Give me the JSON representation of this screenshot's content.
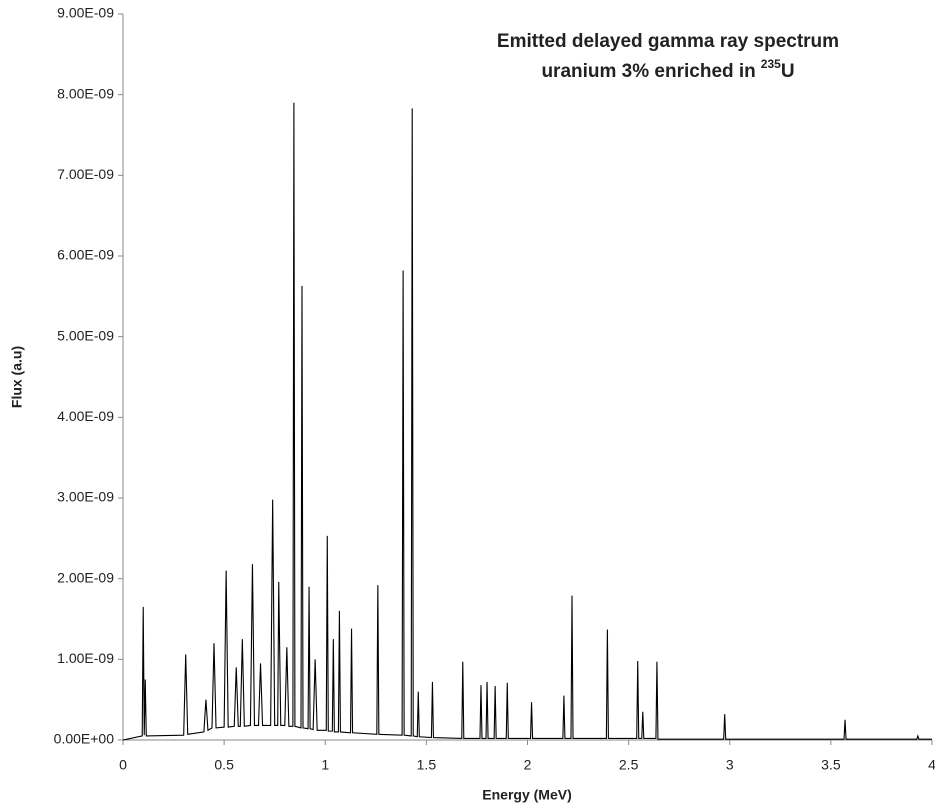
{
  "chart_data": {
    "type": "line",
    "title": "Emitted delayed gamma ray spectrum",
    "title_line2": "uranium 3% enriched in",
    "title_superscript": "235",
    "title_end": "U",
    "x_label": "Energy (MeV)",
    "y_label": "Flux (a.u)",
    "color": "#000000",
    "xlim": [
      0,
      4
    ],
    "xticks": [
      0,
      0.5,
      1,
      1.5,
      2,
      2.5,
      3,
      3.5,
      4
    ],
    "ylim": [
      0,
      9e-09
    ],
    "yticks": [
      {
        "value": 0,
        "label": "0.00E+00"
      },
      {
        "value": 1e-09,
        "label": "1.00E-09"
      },
      {
        "value": 2e-09,
        "label": "2.00E-09"
      },
      {
        "value": 3e-09,
        "label": "3.00E-09"
      },
      {
        "value": 4e-09,
        "label": "4.00E-09"
      },
      {
        "value": 5e-09,
        "label": "5.00E-09"
      },
      {
        "value": 6e-09,
        "label": "6.00E-09"
      },
      {
        "value": 7e-09,
        "label": "7.00E-09"
      },
      {
        "value": 8e-09,
        "label": "8.00E-09"
      },
      {
        "value": 9e-09,
        "label": "9.00E-09"
      }
    ],
    "grid": false,
    "x": [
      0,
      0.095,
      0.1,
      0.105,
      0.11,
      0.115,
      0.3,
      0.31,
      0.32,
      0.4,
      0.41,
      0.42,
      0.44,
      0.45,
      0.46,
      0.5,
      0.51,
      0.52,
      0.55,
      0.56,
      0.57,
      0.58,
      0.59,
      0.6,
      0.63,
      0.64,
      0.65,
      0.67,
      0.68,
      0.69,
      0.73,
      0.74,
      0.75,
      0.765,
      0.77,
      0.78,
      0.8,
      0.81,
      0.82,
      0.84,
      0.845,
      0.85,
      0.88,
      0.885,
      0.89,
      0.915,
      0.92,
      0.925,
      0.94,
      0.95,
      0.96,
      1.005,
      1.01,
      1.015,
      1.035,
      1.04,
      1.045,
      1.065,
      1.07,
      1.075,
      1.125,
      1.13,
      1.135,
      1.255,
      1.26,
      1.265,
      1.38,
      1.385,
      1.39,
      1.425,
      1.43,
      1.435,
      1.455,
      1.46,
      1.465,
      1.525,
      1.53,
      1.535,
      1.675,
      1.68,
      1.685,
      1.765,
      1.77,
      1.775,
      1.795,
      1.8,
      1.805,
      1.835,
      1.84,
      1.845,
      1.895,
      1.9,
      1.905,
      2.015,
      2.02,
      2.025,
      2.175,
      2.18,
      2.185,
      2.215,
      2.22,
      2.225,
      2.39,
      2.395,
      2.4,
      2.54,
      2.545,
      2.55,
      2.565,
      2.57,
      2.575,
      2.635,
      2.64,
      2.645,
      2.97,
      2.975,
      2.98,
      3.565,
      3.57,
      3.575,
      3.925,
      3.93,
      3.935,
      4
    ],
    "values": [
      0,
      5e-11,
      1.65e-09,
      6e-11,
      7.5e-10,
      5e-11,
      6e-11,
      1.06e-09,
      7e-11,
      1e-10,
      5e-10,
      1.2e-10,
      1.5e-10,
      1.2e-09,
      1.5e-10,
      1.6e-10,
      2.1e-09,
      1.6e-10,
      1.7e-10,
      9e-10,
      1.7e-10,
      1.7e-10,
      1.25e-09,
      1.7e-10,
      1.8e-10,
      2.18e-09,
      1.8e-10,
      1.8e-10,
      9.5e-10,
      1.8e-10,
      1.8e-10,
      2.98e-09,
      1.8e-10,
      1.8e-10,
      1.96e-09,
      1.8e-10,
      1.8e-10,
      1.15e-09,
      1.7e-10,
      1.7e-10,
      7.9e-09,
      1.7e-10,
      1.5e-10,
      5.63e-09,
      1.5e-10,
      1.4e-10,
      1.9e-09,
      1.4e-10,
      1.3e-10,
      1e-09,
      1.2e-10,
      1.2e-10,
      2.53e-09,
      1.1e-10,
      1.1e-10,
      1.25e-09,
      1e-10,
      1e-10,
      1.6e-09,
      1e-10,
      9e-11,
      1.38e-09,
      9e-11,
      7e-11,
      1.92e-09,
      7e-11,
      6e-11,
      5.82e-09,
      6e-11,
      5e-11,
      7.83e-09,
      5e-11,
      4e-11,
      6e-10,
      4e-11,
      3e-11,
      7.2e-10,
      3e-11,
      2e-11,
      9.7e-10,
      2e-11,
      2e-11,
      6.8e-10,
      2e-11,
      2e-11,
      7.2e-10,
      2e-11,
      2e-11,
      6.7e-10,
      2e-11,
      2e-11,
      7.1e-10,
      2e-11,
      2e-11,
      4.7e-10,
      2e-11,
      2e-11,
      5.5e-10,
      2e-11,
      2e-11,
      1.79e-09,
      2e-11,
      2e-11,
      1.37e-09,
      2e-11,
      2e-11,
      9.8e-10,
      2e-11,
      2e-11,
      3.5e-10,
      2e-11,
      2e-11,
      9.7e-10,
      1e-11,
      1e-11,
      3.2e-10,
      1e-11,
      1e-11,
      2.5e-10,
      1e-11,
      1e-11,
      5e-11,
      1e-11,
      1e-11
    ]
  }
}
